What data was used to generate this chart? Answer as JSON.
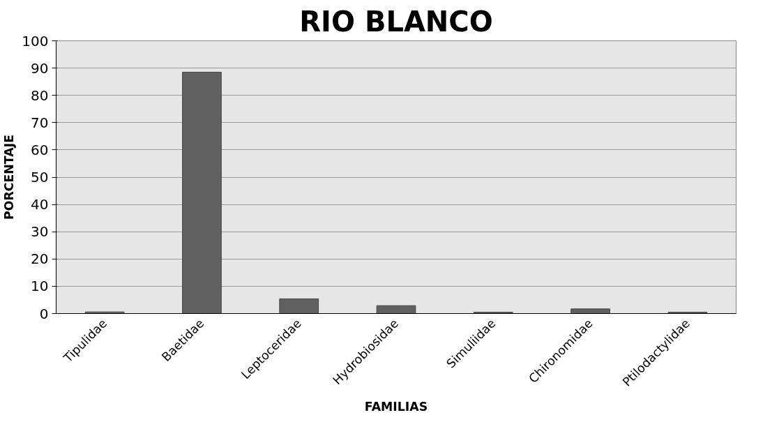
{
  "chart_data": {
    "type": "bar",
    "title": "RIO BLANCO",
    "xlabel": "FAMILIAS",
    "ylabel": "PORCENTAJE",
    "categories": [
      "Tipulidae",
      "Baetidae",
      "Leptoceridae",
      "Hydrobiosidae",
      "Simuliidae",
      "Chironomidae",
      "Ptilodactylidae"
    ],
    "values": [
      0.6,
      88.5,
      5.4,
      2.9,
      0.5,
      1.7,
      0.5
    ],
    "color": "#606060",
    "ylim": [
      0,
      100
    ],
    "yticks": [
      0,
      10,
      20,
      30,
      40,
      50,
      60,
      70,
      80,
      90,
      100
    ],
    "grid": "y"
  }
}
